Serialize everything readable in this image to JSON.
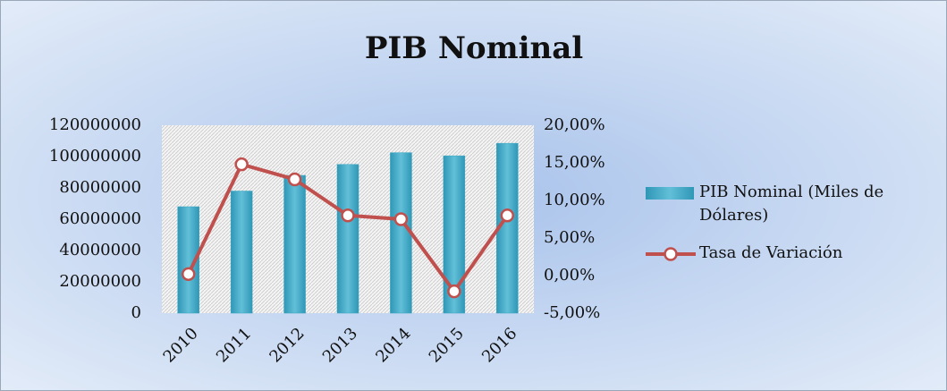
{
  "chart_data": {
    "type": "bar-line",
    "title": "PIB Nominal",
    "categories": [
      "2010",
      "2011",
      "2012",
      "2013",
      "2014",
      "2015",
      "2016"
    ],
    "series": [
      {
        "name": "PIB Nominal (Miles de Dólares)",
        "type": "bar",
        "color": "#3aa6c4",
        "values": [
          68000000,
          78000000,
          88000000,
          95000000,
          102500000,
          100500000,
          108500000
        ]
      },
      {
        "name": "Tasa de Variación",
        "type": "line",
        "axis": "y2",
        "color": "#c0504d",
        "values": [
          0.2,
          14.8,
          12.8,
          8.0,
          7.5,
          -2.1,
          8.0
        ]
      }
    ],
    "ylim": [
      0,
      120000000
    ],
    "yticks": [
      0,
      20000000,
      40000000,
      60000000,
      80000000,
      100000000,
      120000000
    ],
    "y2lim": [
      -5,
      20
    ],
    "y2ticks": [
      {
        "value": -5,
        "label": "-5,00%"
      },
      {
        "value": 0,
        "label": "0,00%"
      },
      {
        "value": 5,
        "label": "5,00%"
      },
      {
        "value": 10,
        "label": "10,00%"
      },
      {
        "value": 15,
        "label": "15,00%"
      },
      {
        "value": 20,
        "label": "20,00%"
      }
    ],
    "legend": "right"
  }
}
